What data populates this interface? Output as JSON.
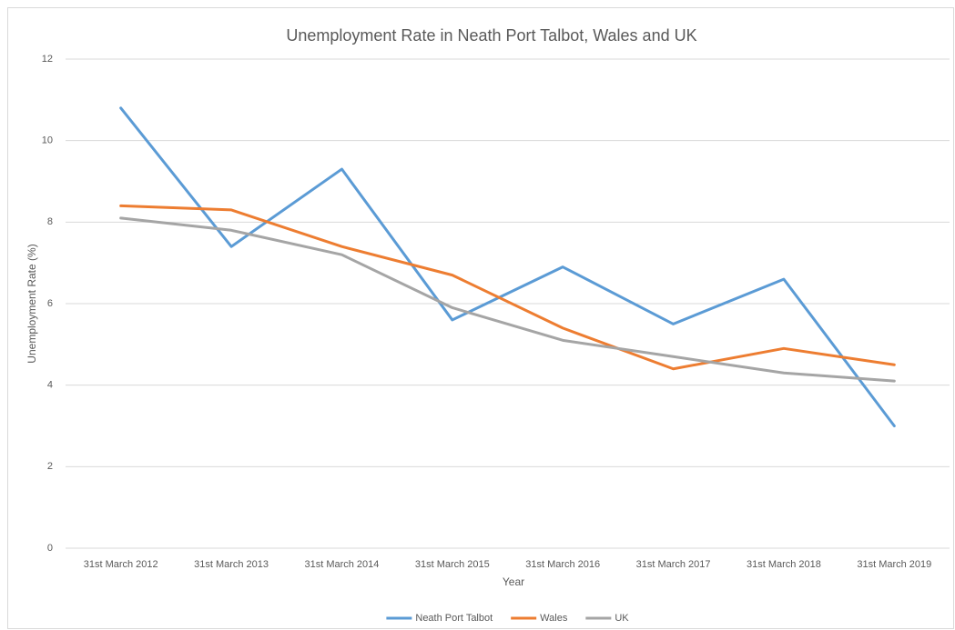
{
  "chart_data": {
    "type": "line",
    "title": "Unemployment Rate in Neath Port Talbot, Wales and UK",
    "x_label": "Year",
    "y_label": "Unemployment Rate (%)",
    "categories": [
      "31st March 2012",
      "31st March 2013",
      "31st March 2014",
      "31st March 2015",
      "31st March 2016",
      "31st March 2017",
      "31st March 2018",
      "31st March 2019"
    ],
    "series": [
      {
        "name": "Neath Port Talbot",
        "color": "#5b9bd5",
        "values": [
          10.8,
          7.4,
          9.3,
          5.6,
          6.9,
          5.5,
          6.6,
          3.0
        ]
      },
      {
        "name": "Wales",
        "color": "#ed7d31",
        "values": [
          8.4,
          8.3,
          7.4,
          6.7,
          5.4,
          4.4,
          4.9,
          4.5
        ]
      },
      {
        "name": "UK",
        "color": "#a5a5a5",
        "values": [
          8.1,
          7.8,
          7.2,
          5.9,
          5.1,
          4.7,
          4.3,
          4.1
        ]
      }
    ],
    "ylim": [
      0,
      12
    ],
    "yticks": [
      0,
      2,
      4,
      6,
      8,
      10,
      12
    ],
    "grid": true,
    "legend": "bottom"
  }
}
